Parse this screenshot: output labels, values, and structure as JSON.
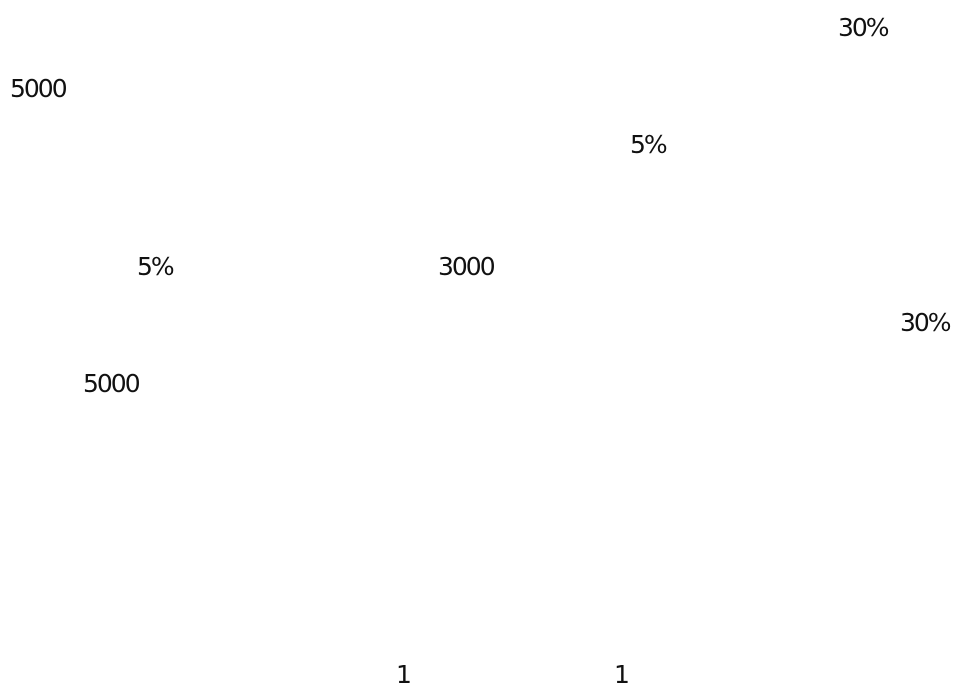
{
  "lines": [
    {
      "text": "30%"
    },
    {
      "text": "5000"
    },
    {
      "text": "5%"
    },
    {
      "text": "5%"
    },
    {
      "text": "3000"
    },
    {
      "text": "30%"
    },
    {
      "text": "5000"
    }
  ],
  "footer": {
    "left_number": "1",
    "right_number": "1"
  }
}
